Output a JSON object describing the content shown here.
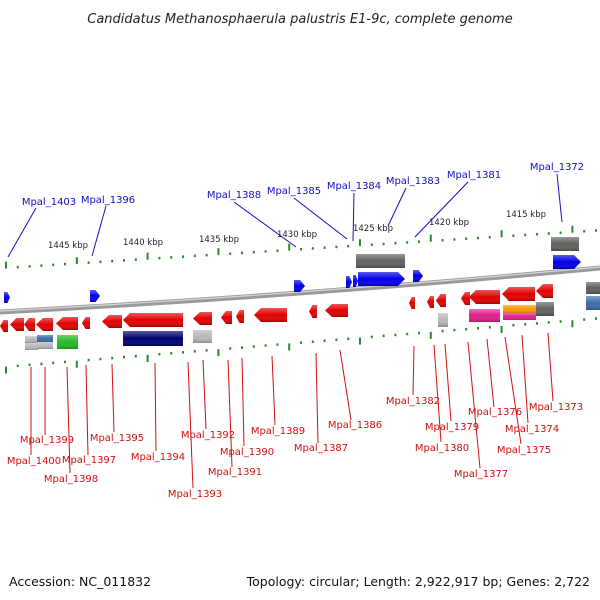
{
  "title": "Candidatus Methanosphaerula palustris E1-9c, complete genome",
  "footer": {
    "accession": "Accession: NC_011832",
    "topology": "Topology: circular; Length: 2,922,917 bp; Genes: 2,722"
  },
  "scale_labels": [
    "1445 kbp",
    "1440 kbp",
    "1435 kbp",
    "1430 kbp",
    "1425 kbp",
    "1420 kbp",
    "1415 kbp"
  ],
  "colors": {
    "forward_label": "#1010c8",
    "reverse_label": "#d01010",
    "backbone": "#8a8a8a",
    "tick": "#2a8a2a",
    "gene_red": "#e00000",
    "gene_blue": "#0000e6",
    "gene_navy": "#000070",
    "gene_gray": "#606060",
    "gene_lightgray": "#b8b8b8",
    "gene_green": "#22bb22",
    "gene_magenta": "#e0208c",
    "gene_orange": "#ff9a00",
    "gene_steelblue": "#3c6ea8"
  },
  "forward_labels": [
    "Mpal_1403",
    "Mpal_1396",
    "Mpal_1388",
    "Mpal_1385",
    "Mpal_1384",
    "Mpal_1383",
    "Mpal_1381",
    "Mpal_1372"
  ],
  "reverse_labels": [
    "Mpal_1399",
    "Mpal_1400",
    "Mpal_1398",
    "Mpal_1397",
    "Mpal_1395",
    "Mpal_1394",
    "Mpal_1393",
    "Mpal_1392",
    "Mpal_1391",
    "Mpal_1390",
    "Mpal_1389",
    "Mpal_1387",
    "Mpal_1386",
    "Mpal_1382",
    "Mpal_1380",
    "Mpal_1379",
    "Mpal_1377",
    "Mpal_1376",
    "Mpal_1375",
    "Mpal_1374",
    "Mpal_1373"
  ]
}
